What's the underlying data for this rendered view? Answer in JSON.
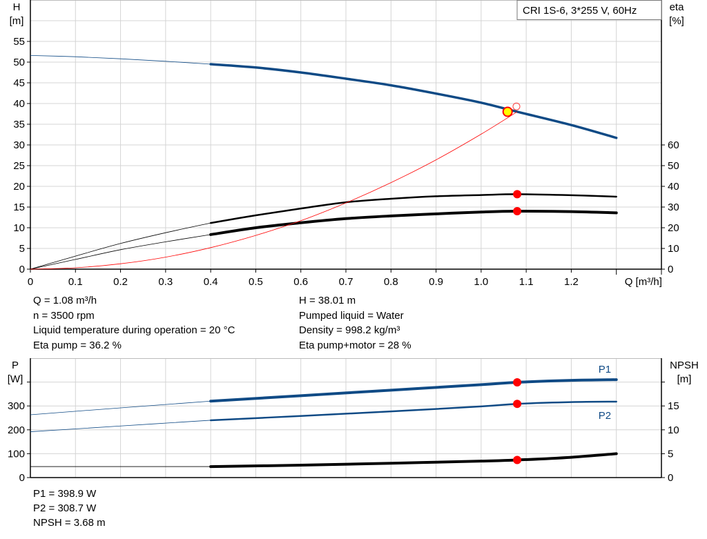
{
  "chart_data": [
    {
      "type": "line",
      "title": "",
      "legend_box": "CRI 1S-6, 3*255 V, 60Hz",
      "xlabel": "Q [m³/h]",
      "ylabel_left": [
        "H",
        "[m]"
      ],
      "ylabel_right": [
        "eta",
        "[%]"
      ],
      "xlim": [
        0,
        1.4
      ],
      "ylim_left": [
        0,
        65
      ],
      "ylim_right": [
        0,
        130
      ],
      "x_ticks": [
        "0",
        "0.1",
        "0.2",
        "0.3",
        "0.4",
        "0.5",
        "0.6",
        "0.7",
        "0.8",
        "0.9",
        "1.0",
        "1.1",
        "1.2"
      ],
      "y_left_ticks": [
        "0",
        "5",
        "10",
        "15",
        "20",
        "25",
        "30",
        "35",
        "40",
        "45",
        "50",
        "55"
      ],
      "y_right_ticks": [
        "0",
        "10",
        "20",
        "30",
        "40",
        "50",
        "60"
      ],
      "grid": true,
      "series": [
        {
          "axis": "left",
          "color": "#0f4a85",
          "thin_until": 0.4,
          "x": [
            0,
            0.1,
            0.2,
            0.3,
            0.4,
            0.5,
            0.6,
            0.7,
            0.8,
            0.9,
            1.0,
            1.08,
            1.2,
            1.3
          ],
          "y": [
            51.6,
            51.3,
            50.8,
            50.2,
            49.5,
            48.7,
            47.5,
            46.0,
            44.4,
            42.4,
            40.2,
            38.01,
            34.8,
            31.7
          ]
        },
        {
          "axis": "right",
          "color": "#000000",
          "thin_until": 0.4,
          "x": [
            0,
            0.1,
            0.2,
            0.3,
            0.4,
            0.5,
            0.6,
            0.7,
            0.8,
            0.9,
            1.0,
            1.08,
            1.2,
            1.3
          ],
          "y": [
            0,
            6.3,
            12.4,
            17.6,
            22.3,
            26.0,
            29.3,
            32.3,
            34.0,
            35.2,
            35.8,
            36.2,
            35.7,
            35.0
          ]
        },
        {
          "axis": "right",
          "color": "#000000",
          "thin_until": 0.4,
          "thick": true,
          "x": [
            0,
            0.1,
            0.2,
            0.3,
            0.4,
            0.5,
            0.6,
            0.7,
            0.8,
            0.9,
            1.0,
            1.08,
            1.2,
            1.3
          ],
          "y": [
            0,
            4.7,
            9.4,
            13.2,
            16.7,
            20.0,
            22.4,
            24.4,
            25.7,
            26.7,
            27.6,
            28.0,
            27.8,
            27.2
          ]
        },
        {
          "axis": "left",
          "color": "#ff0000",
          "thin_until": 2,
          "x": [
            0,
            0.1,
            0.2,
            0.3,
            0.4,
            0.5,
            0.6,
            0.7,
            0.8,
            0.9,
            1.0,
            1.08
          ],
          "y": [
            0,
            0.33,
            1.3,
            2.9,
            5.2,
            8.15,
            11.7,
            16.0,
            20.9,
            26.4,
            32.6,
            38.01
          ]
        }
      ],
      "duty_point": {
        "q": 1.08,
        "h": 38.01,
        "eta_pump": 36.2,
        "eta_total": 28
      },
      "requested_point": {
        "q": 1.1,
        "h": 39.3
      }
    },
    {
      "type": "line",
      "title": "",
      "ylabel_left": [
        "P",
        "[W]"
      ],
      "ylabel_right": [
        "NPSH",
        "[m]"
      ],
      "xlim": [
        0,
        1.4
      ],
      "ylim_left": [
        0,
        500
      ],
      "ylim_right": [
        0,
        25
      ],
      "y_left_ticks": [
        "0",
        "100",
        "200",
        "300"
      ],
      "y_right_ticks": [
        "0",
        "5",
        "10",
        "15"
      ],
      "grid": true,
      "series": [
        {
          "name": "P1",
          "axis": "left",
          "color": "#0f4a85",
          "thin_until": 0.4,
          "thick": true,
          "x": [
            0,
            0.2,
            0.4,
            0.6,
            0.8,
            1.0,
            1.08,
            1.2,
            1.3
          ],
          "y": [
            263,
            292,
            320,
            343,
            366,
            389,
            398.9,
            407,
            410
          ]
        },
        {
          "name": "P2",
          "axis": "left",
          "color": "#0f4a85",
          "thin_until": 0.4,
          "x": [
            0,
            0.2,
            0.4,
            0.6,
            0.8,
            1.0,
            1.08,
            1.2,
            1.3
          ],
          "y": [
            192,
            216,
            240,
            258,
            277,
            298,
            308.7,
            316,
            318
          ]
        },
        {
          "axis": "right",
          "color": "#000000",
          "thin_until": 0.4,
          "thick": true,
          "x": [
            0,
            0.4,
            0.6,
            0.8,
            1.0,
            1.08,
            1.2,
            1.3
          ],
          "y": [
            2.3,
            2.3,
            2.6,
            3.0,
            3.45,
            3.68,
            4.25,
            5.0
          ]
        }
      ]
    }
  ],
  "info_top": {
    "col1": [
      "Q = 1.08 m³/h",
      "n = 3500 rpm",
      "Liquid temperature during operation = 20 °C",
      "Eta pump = 36.2 %"
    ],
    "col2": [
      "H = 38.01 m",
      "Pumped liquid = Water",
      "Density = 998.2 kg/m³",
      "Eta pump+motor = 28 %"
    ]
  },
  "info_bottom": [
    "P1 = 398.9 W",
    "P2 = 308.7 W",
    "NPSH = 3.68 m"
  ]
}
